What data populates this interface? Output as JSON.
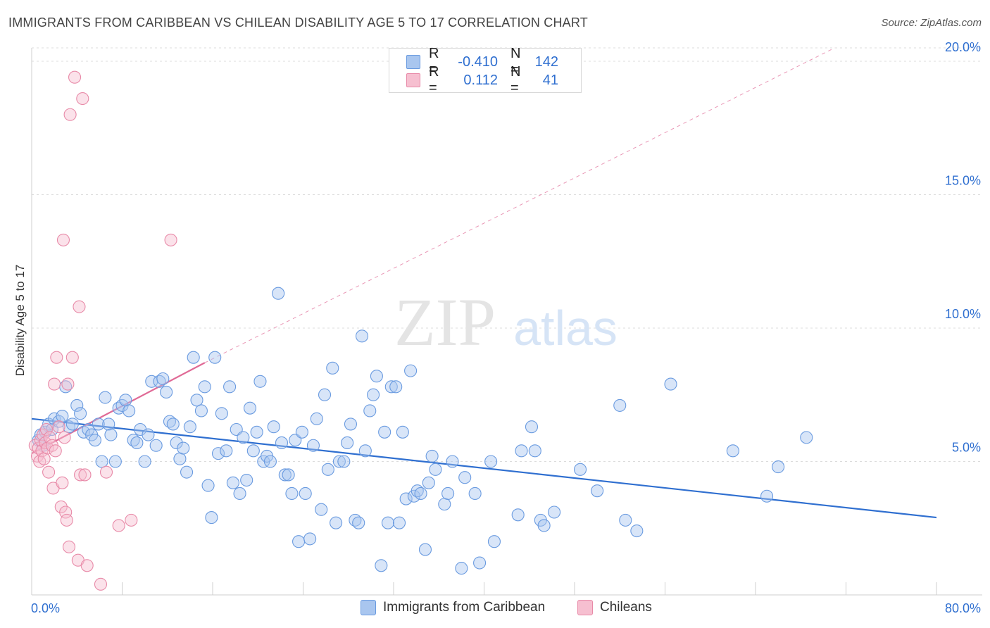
{
  "title": "IMMIGRANTS FROM CARIBBEAN VS CHILEAN DISABILITY AGE 5 TO 17 CORRELATION CHART",
  "source": "Source: ZipAtlas.com",
  "watermark": {
    "zip": "ZIP",
    "atlas": "atlas"
  },
  "legend": {
    "rows": [
      {
        "r_label": "R =",
        "r_value": "-0.410",
        "n_label": "N =",
        "n_value": "142",
        "color": "#a9c6ef",
        "border": "#6a9be0"
      },
      {
        "r_label": "R =",
        "r_value": "0.112",
        "n_label": "N =",
        "n_value": "41",
        "color": "#f6bfd0",
        "border": "#e88aa8"
      }
    ]
  },
  "bottom_legend": [
    {
      "label": "Immigrants from Caribbean",
      "color": "#a9c6ef",
      "border": "#6a9be0"
    },
    {
      "label": "Chileans",
      "color": "#f6bfd0",
      "border": "#e88aa8"
    }
  ],
  "chart_data": {
    "type": "scatter",
    "ylabel": "Disability Age 5 to 17",
    "xlim": [
      0,
      80
    ],
    "ylim": [
      0,
      20.5
    ],
    "x_tick_labels": [
      "0.0%",
      "80.0%"
    ],
    "y_ticks": [
      5,
      10,
      15,
      20
    ],
    "y_tick_labels": [
      "5.0%",
      "10.0%",
      "15.0%",
      "20.0%"
    ],
    "grid": true,
    "legend_position": "top-center",
    "series": [
      {
        "name": "Immigrants from Caribbean",
        "color": "#6a9be0",
        "fill": "rgba(169,198,239,0.45)",
        "trend": {
          "x": [
            0,
            80
          ],
          "y": [
            6.6,
            2.9
          ],
          "color": "#2f6fd0"
        },
        "points": [
          [
            0.6,
            5.8
          ],
          [
            0.8,
            6.0
          ],
          [
            1.0,
            5.6
          ],
          [
            1.2,
            6.1
          ],
          [
            1.5,
            6.4
          ],
          [
            1.8,
            6.2
          ],
          [
            2.0,
            6.6
          ],
          [
            2.4,
            6.5
          ],
          [
            2.7,
            6.7
          ],
          [
            3.0,
            7.8
          ],
          [
            3.3,
            6.3
          ],
          [
            3.6,
            6.4
          ],
          [
            4.0,
            7.1
          ],
          [
            4.3,
            6.8
          ],
          [
            4.6,
            6.1
          ],
          [
            5.0,
            6.2
          ],
          [
            5.3,
            6.0
          ],
          [
            5.6,
            5.8
          ],
          [
            5.9,
            6.4
          ],
          [
            6.2,
            5.0
          ],
          [
            6.5,
            7.4
          ],
          [
            6.8,
            6.4
          ],
          [
            7.0,
            6.0
          ],
          [
            7.4,
            5.0
          ],
          [
            7.7,
            7.0
          ],
          [
            8.0,
            7.1
          ],
          [
            8.3,
            7.3
          ],
          [
            8.6,
            6.9
          ],
          [
            9.0,
            5.8
          ],
          [
            9.3,
            5.7
          ],
          [
            9.6,
            6.2
          ],
          [
            10.0,
            5.0
          ],
          [
            10.3,
            6.0
          ],
          [
            10.6,
            8.0
          ],
          [
            11.0,
            5.6
          ],
          [
            11.3,
            8.0
          ],
          [
            11.6,
            8.1
          ],
          [
            11.9,
            7.6
          ],
          [
            12.2,
            6.5
          ],
          [
            12.5,
            6.4
          ],
          [
            12.8,
            5.7
          ],
          [
            13.1,
            5.1
          ],
          [
            13.4,
            5.5
          ],
          [
            13.7,
            4.6
          ],
          [
            14.0,
            6.3
          ],
          [
            14.3,
            8.9
          ],
          [
            14.6,
            7.3
          ],
          [
            15.0,
            6.9
          ],
          [
            15.3,
            7.8
          ],
          [
            15.6,
            4.1
          ],
          [
            15.9,
            2.9
          ],
          [
            16.2,
            8.9
          ],
          [
            16.5,
            5.3
          ],
          [
            16.8,
            6.8
          ],
          [
            17.2,
            5.4
          ],
          [
            17.5,
            7.8
          ],
          [
            17.8,
            4.2
          ],
          [
            18.1,
            6.2
          ],
          [
            18.4,
            3.8
          ],
          [
            18.7,
            5.9
          ],
          [
            19.0,
            4.3
          ],
          [
            19.3,
            7.0
          ],
          [
            19.6,
            5.4
          ],
          [
            19.9,
            6.1
          ],
          [
            20.2,
            8.0
          ],
          [
            20.5,
            5.0
          ],
          [
            20.8,
            5.2
          ],
          [
            21.1,
            5.0
          ],
          [
            21.4,
            6.3
          ],
          [
            21.8,
            11.3
          ],
          [
            22.1,
            5.7
          ],
          [
            22.4,
            4.5
          ],
          [
            22.7,
            4.5
          ],
          [
            23.0,
            3.8
          ],
          [
            23.3,
            5.8
          ],
          [
            23.6,
            2.0
          ],
          [
            23.9,
            6.1
          ],
          [
            24.2,
            3.8
          ],
          [
            24.6,
            2.1
          ],
          [
            24.9,
            5.6
          ],
          [
            25.2,
            6.6
          ],
          [
            25.6,
            3.2
          ],
          [
            25.9,
            7.5
          ],
          [
            26.2,
            4.7
          ],
          [
            26.6,
            8.5
          ],
          [
            26.9,
            2.7
          ],
          [
            27.2,
            5.0
          ],
          [
            27.6,
            5.0
          ],
          [
            27.9,
            5.7
          ],
          [
            28.2,
            6.4
          ],
          [
            28.6,
            2.8
          ],
          [
            28.9,
            2.7
          ],
          [
            29.2,
            9.7
          ],
          [
            29.5,
            5.4
          ],
          [
            29.9,
            6.9
          ],
          [
            30.2,
            7.5
          ],
          [
            30.5,
            8.2
          ],
          [
            30.9,
            1.1
          ],
          [
            31.2,
            6.1
          ],
          [
            31.5,
            2.7
          ],
          [
            31.8,
            7.8
          ],
          [
            32.2,
            7.8
          ],
          [
            32.5,
            2.7
          ],
          [
            32.8,
            6.1
          ],
          [
            33.1,
            3.6
          ],
          [
            33.5,
            8.4
          ],
          [
            33.8,
            3.7
          ],
          [
            34.1,
            3.9
          ],
          [
            34.4,
            3.8
          ],
          [
            34.8,
            1.7
          ],
          [
            35.1,
            4.2
          ],
          [
            35.4,
            5.2
          ],
          [
            35.7,
            4.7
          ],
          [
            36.5,
            3.4
          ],
          [
            36.8,
            3.8
          ],
          [
            37.2,
            5.0
          ],
          [
            38.0,
            1.0
          ],
          [
            38.3,
            4.4
          ],
          [
            39.2,
            3.8
          ],
          [
            39.6,
            1.2
          ],
          [
            40.6,
            5.0
          ],
          [
            40.9,
            2.0
          ],
          [
            43.0,
            3.0
          ],
          [
            43.3,
            5.4
          ],
          [
            44.2,
            6.3
          ],
          [
            44.5,
            5.4
          ],
          [
            45.0,
            2.8
          ],
          [
            45.3,
            2.6
          ],
          [
            46.2,
            3.1
          ],
          [
            48.5,
            4.7
          ],
          [
            50.0,
            3.9
          ],
          [
            52.0,
            7.1
          ],
          [
            52.5,
            2.8
          ],
          [
            53.5,
            2.4
          ],
          [
            56.5,
            7.9
          ],
          [
            62.0,
            5.4
          ],
          [
            65.0,
            3.7
          ],
          [
            66.0,
            4.8
          ],
          [
            68.5,
            5.9
          ]
        ]
      },
      {
        "name": "Chileans",
        "color": "#e88aa8",
        "fill": "rgba(246,191,208,0.45)",
        "trend": {
          "x": [
            0,
            15.3
          ],
          "y": [
            5.3,
            8.7
          ],
          "color": "#e06a96",
          "ext_x": [
            15.3,
            71
          ],
          "ext_y": [
            8.7,
            20.5
          ]
        },
        "points": [
          [
            0.3,
            5.6
          ],
          [
            0.5,
            5.2
          ],
          [
            0.6,
            5.5
          ],
          [
            0.7,
            5.0
          ],
          [
            0.8,
            5.8
          ],
          [
            0.9,
            5.4
          ],
          [
            1.0,
            6.0
          ],
          [
            1.1,
            5.1
          ],
          [
            1.2,
            5.7
          ],
          [
            1.3,
            6.2
          ],
          [
            1.4,
            5.5
          ],
          [
            1.5,
            4.6
          ],
          [
            1.6,
            5.9
          ],
          [
            1.8,
            5.6
          ],
          [
            1.9,
            4.0
          ],
          [
            2.0,
            7.9
          ],
          [
            2.1,
            5.4
          ],
          [
            2.2,
            8.9
          ],
          [
            2.4,
            6.3
          ],
          [
            2.6,
            3.3
          ],
          [
            2.7,
            4.2
          ],
          [
            2.8,
            13.3
          ],
          [
            2.9,
            5.9
          ],
          [
            3.0,
            3.1
          ],
          [
            3.1,
            2.8
          ],
          [
            3.2,
            7.9
          ],
          [
            3.3,
            1.8
          ],
          [
            3.4,
            18.0
          ],
          [
            3.6,
            8.9
          ],
          [
            3.8,
            19.4
          ],
          [
            4.1,
            1.3
          ],
          [
            4.2,
            10.8
          ],
          [
            4.3,
            4.5
          ],
          [
            4.5,
            18.6
          ],
          [
            4.7,
            4.5
          ],
          [
            4.9,
            1.1
          ],
          [
            6.1,
            0.4
          ],
          [
            6.6,
            4.6
          ],
          [
            7.7,
            2.6
          ],
          [
            8.8,
            2.8
          ],
          [
            12.3,
            13.3
          ]
        ]
      }
    ]
  }
}
